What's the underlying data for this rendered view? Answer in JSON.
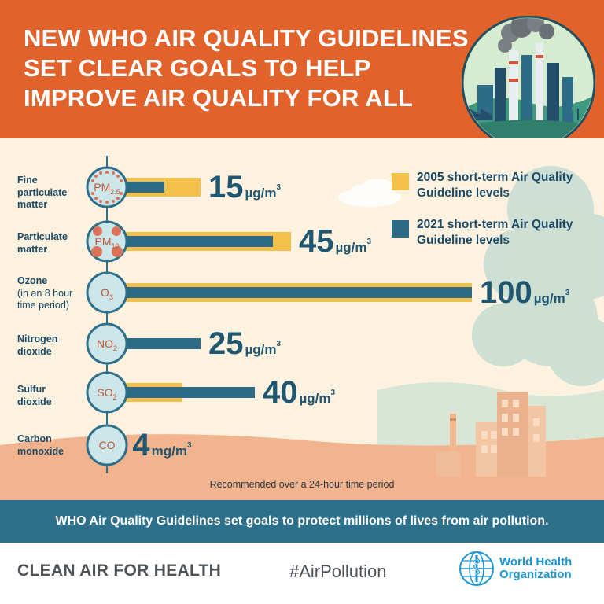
{
  "header": {
    "headline_lines": [
      "NEW WHO AIR QUALITY GUIDELINES",
      "SET CLEAR GOALS TO HELP",
      "IMPROVE AIR QUALITY FOR ALL"
    ]
  },
  "legend": {
    "item_2005": "2005 short-term Air Quality Guideline levels",
    "item_2021": "2021 short-term Air Quality Guideline levels"
  },
  "pollutants": [
    {
      "name_lines": [
        "Fine",
        "particulate",
        "matter"
      ],
      "note_lines": []
    },
    {
      "name_lines": [
        "Particulate",
        "matter"
      ],
      "note_lines": []
    },
    {
      "name_lines": [
        "Ozone"
      ],
      "note_lines": [
        "(in an 8 hour",
        "time period)"
      ]
    },
    {
      "name_lines": [
        "Nitrogen",
        "dioxide"
      ],
      "note_lines": []
    },
    {
      "name_lines": [
        "Sulfur",
        "dioxide"
      ],
      "note_lines": []
    },
    {
      "name_lines": [
        "Carbon",
        "monoxide"
      ],
      "note_lines": []
    }
  ],
  "chart_data": {
    "type": "bar",
    "orientation": "horizontal",
    "title": "NEW WHO AIR QUALITY GUIDELINES SET CLEAR GOALS TO HELP IMPROVE AIR QUALITY FOR ALL",
    "categories": [
      "PM2.5",
      "PM10",
      "O3",
      "NO2",
      "SO2",
      "CO"
    ],
    "category_symbols": [
      {
        "base": "PM",
        "sub": "2.5"
      },
      {
        "base": "PM",
        "sub": "10"
      },
      {
        "base": "O",
        "sub": "3"
      },
      {
        "base": "NO",
        "sub": "2"
      },
      {
        "base": "SO",
        "sub": "2"
      },
      {
        "base": "CO",
        "sub": ""
      }
    ],
    "series": [
      {
        "name": "2005 short-term Air Quality Guideline levels",
        "color": "#f3c14b",
        "values": [
          25,
          50,
          100,
          null,
          20,
          null
        ]
      },
      {
        "name": "2021 short-term Air Quality Guideline levels",
        "color": "#2d6a85",
        "values": [
          15,
          45,
          100,
          25,
          40,
          4
        ]
      }
    ],
    "value_labels": [
      {
        "value": "15",
        "unit": "µg/m",
        "sup": "3"
      },
      {
        "value": "45",
        "unit": "µg/m",
        "sup": "3"
      },
      {
        "value": "100",
        "unit": "µg/m",
        "sup": "3"
      },
      {
        "value": "25",
        "unit": "µg/m",
        "sup": "3"
      },
      {
        "value": "40",
        "unit": "µg/m",
        "sup": "3"
      },
      {
        "value": "4",
        "unit": "mg/m",
        "sup": "3"
      }
    ],
    "xlim": [
      0,
      100
    ],
    "legend_position": "top-right",
    "footnote": "Recommended over a 24-hour time period"
  },
  "banner": {
    "text": "WHO Air Quality Guidelines set goals to protect millions of lives from air pollution."
  },
  "footer": {
    "slogan": "CLEAN AIR FOR HEALTH",
    "hashtag": "#AirPollution",
    "org_name_lines": [
      "World Health",
      "Organization"
    ]
  },
  "colors": {
    "header_orange": "#e2622b",
    "navy_text": "#1b4a66",
    "bar_2005": "#f3c14b",
    "bar_2021": "#2d6a85",
    "banner_teal": "#2e6f8a",
    "who_blue": "#1a95d2"
  }
}
